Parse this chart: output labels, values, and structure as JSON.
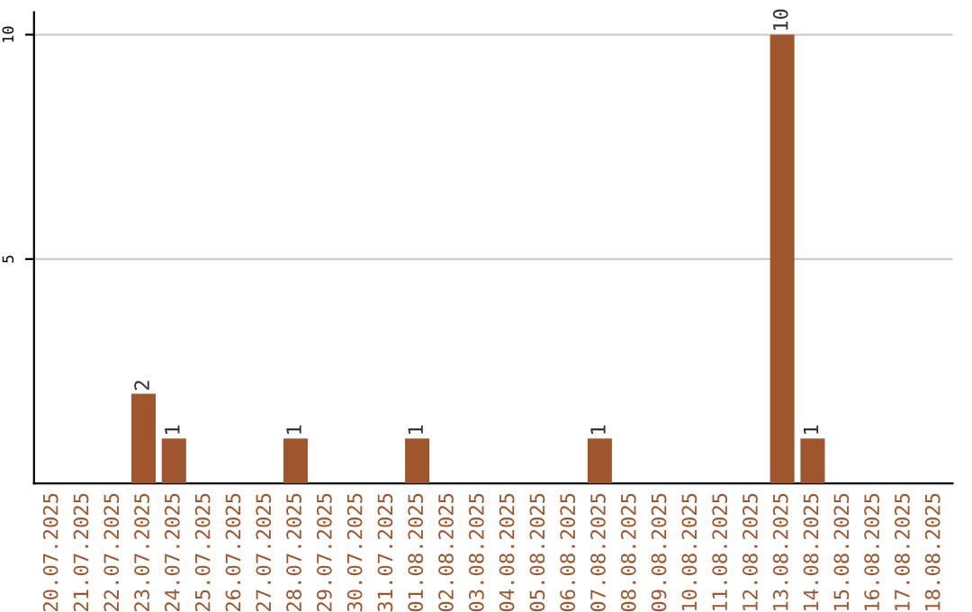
{
  "chart_data": {
    "type": "bar",
    "categories": [
      "20.07.2025",
      "21.07.2025",
      "22.07.2025",
      "23.07.2025",
      "24.07.2025",
      "25.07.2025",
      "26.07.2025",
      "27.07.2025",
      "28.07.2025",
      "29.07.2025",
      "30.07.2025",
      "31.07.2025",
      "01.08.2025",
      "02.08.2025",
      "03.08.2025",
      "04.08.2025",
      "05.08.2025",
      "06.08.2025",
      "07.08.2025",
      "08.08.2025",
      "09.08.2025",
      "10.08.2025",
      "11.08.2025",
      "12.08.2025",
      "13.08.2025",
      "14.08.2025",
      "15.08.2025",
      "16.08.2025",
      "17.08.2025",
      "18.08.2025"
    ],
    "values": [
      0,
      0,
      0,
      2,
      1,
      0,
      0,
      0,
      1,
      0,
      0,
      0,
      1,
      0,
      0,
      0,
      0,
      0,
      1,
      0,
      0,
      0,
      0,
      0,
      10,
      1,
      0,
      0,
      0,
      0
    ],
    "value_labels": [
      null,
      null,
      null,
      "2",
      "1",
      null,
      null,
      null,
      "1",
      null,
      null,
      null,
      "1",
      null,
      null,
      null,
      null,
      null,
      "1",
      null,
      null,
      null,
      null,
      null,
      "10",
      "1",
      null,
      null,
      null,
      null
    ],
    "color": "#a0562c",
    "ylim": [
      0,
      10.5
    ],
    "yticks": [
      5,
      10
    ],
    "grid": "y"
  }
}
